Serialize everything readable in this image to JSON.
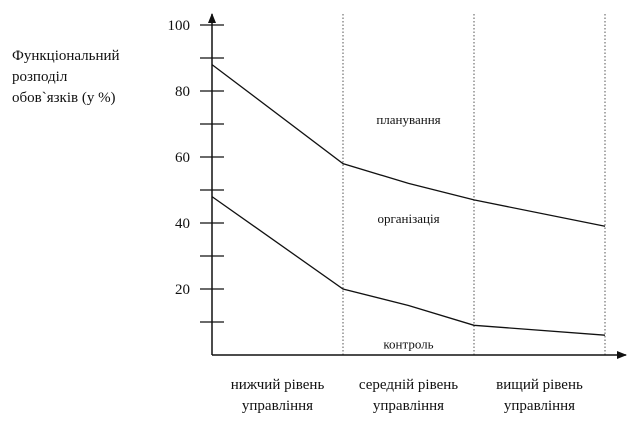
{
  "chart_data": {
    "type": "line",
    "title": "",
    "ylabel": [
      "Функціональний",
      "розподіл",
      "обов`язків (у %)"
    ],
    "xlabel": "",
    "ylim": [
      0,
      100
    ],
    "yticks": [
      20,
      40,
      60,
      80,
      100
    ],
    "categories": [
      [
        "нижчий рівень",
        "управління"
      ],
      [
        "середній рівень",
        "управління"
      ],
      [
        "вищий рівень",
        "управління"
      ]
    ],
    "x": [
      0,
      1,
      1.5,
      2,
      3
    ],
    "series": [
      {
        "values": [
          88,
          58,
          52,
          47,
          39
        ]
      },
      {
        "values": [
          48,
          20,
          15,
          9,
          6
        ]
      }
    ],
    "region_labels": [
      {
        "text": "планування",
        "x": 1.5,
        "y": 70
      },
      {
        "text": "організація",
        "x": 1.5,
        "y": 40
      },
      {
        "text": "контроль",
        "x": 1.5,
        "y": 2
      }
    ],
    "grid": false,
    "legend": "none"
  }
}
